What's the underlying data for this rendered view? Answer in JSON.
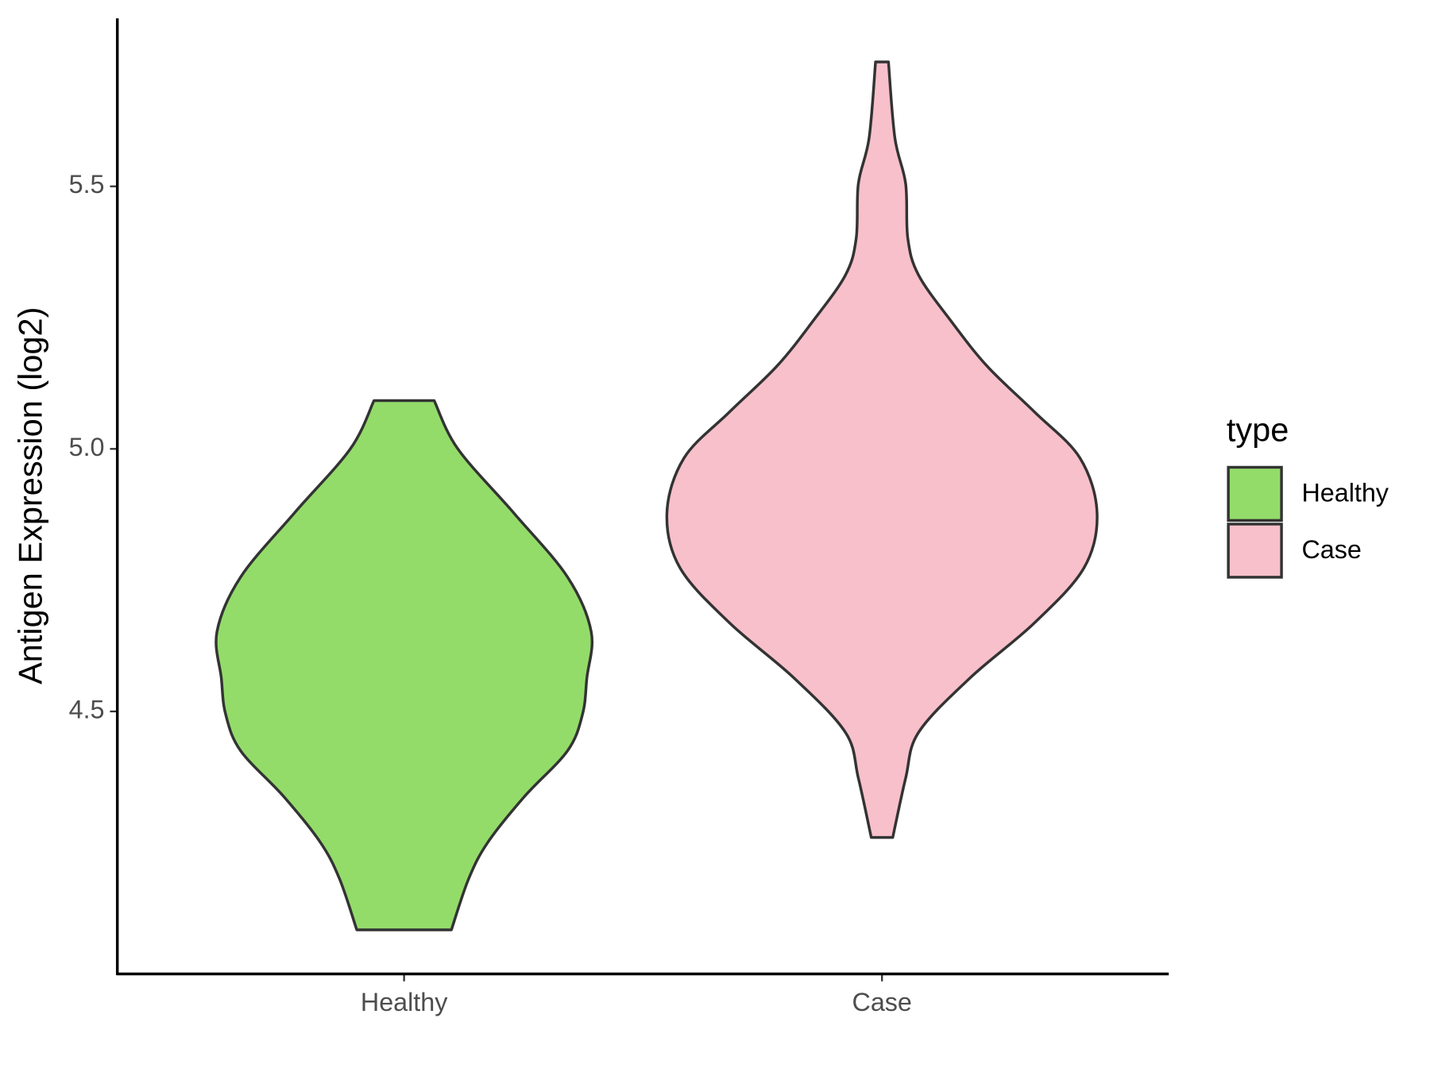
{
  "chart_data": {
    "type": "violin",
    "y_label": "Antigen Expression (log2)",
    "categories": [
      "Healthy",
      "Case"
    ],
    "legend_title": "type",
    "legend_position": "right",
    "ylim": [
      4.0,
      5.82
    ],
    "yticks": [
      {
        "value": 4.5,
        "label": "4.5"
      },
      {
        "value": 5.0,
        "label": "5.0"
      },
      {
        "value": 5.5,
        "label": "5.5"
      }
    ],
    "series": [
      {
        "name": "Healthy",
        "color": "#93dc6a",
        "y": [
          5.092,
          5.0,
          4.878,
          4.756,
          4.652,
          4.564,
          4.495,
          4.425,
          4.338,
          4.251,
          4.181,
          4.084
        ],
        "density": [
          0.14,
          0.25,
          0.51,
          0.76,
          0.87,
          0.85,
          0.83,
          0.76,
          0.56,
          0.39,
          0.3,
          0.22
        ]
      },
      {
        "name": "Case",
        "color": "#f8c0cb",
        "y": [
          5.737,
          5.592,
          5.505,
          5.401,
          5.331,
          5.244,
          5.157,
          5.07,
          4.983,
          4.878,
          4.774,
          4.669,
          4.564,
          4.46,
          4.373,
          4.26
        ],
        "density": [
          0.03,
          0.06,
          0.11,
          0.12,
          0.17,
          0.32,
          0.49,
          0.71,
          0.92,
          1.0,
          0.94,
          0.71,
          0.41,
          0.17,
          0.11,
          0.05
        ]
      }
    ]
  }
}
